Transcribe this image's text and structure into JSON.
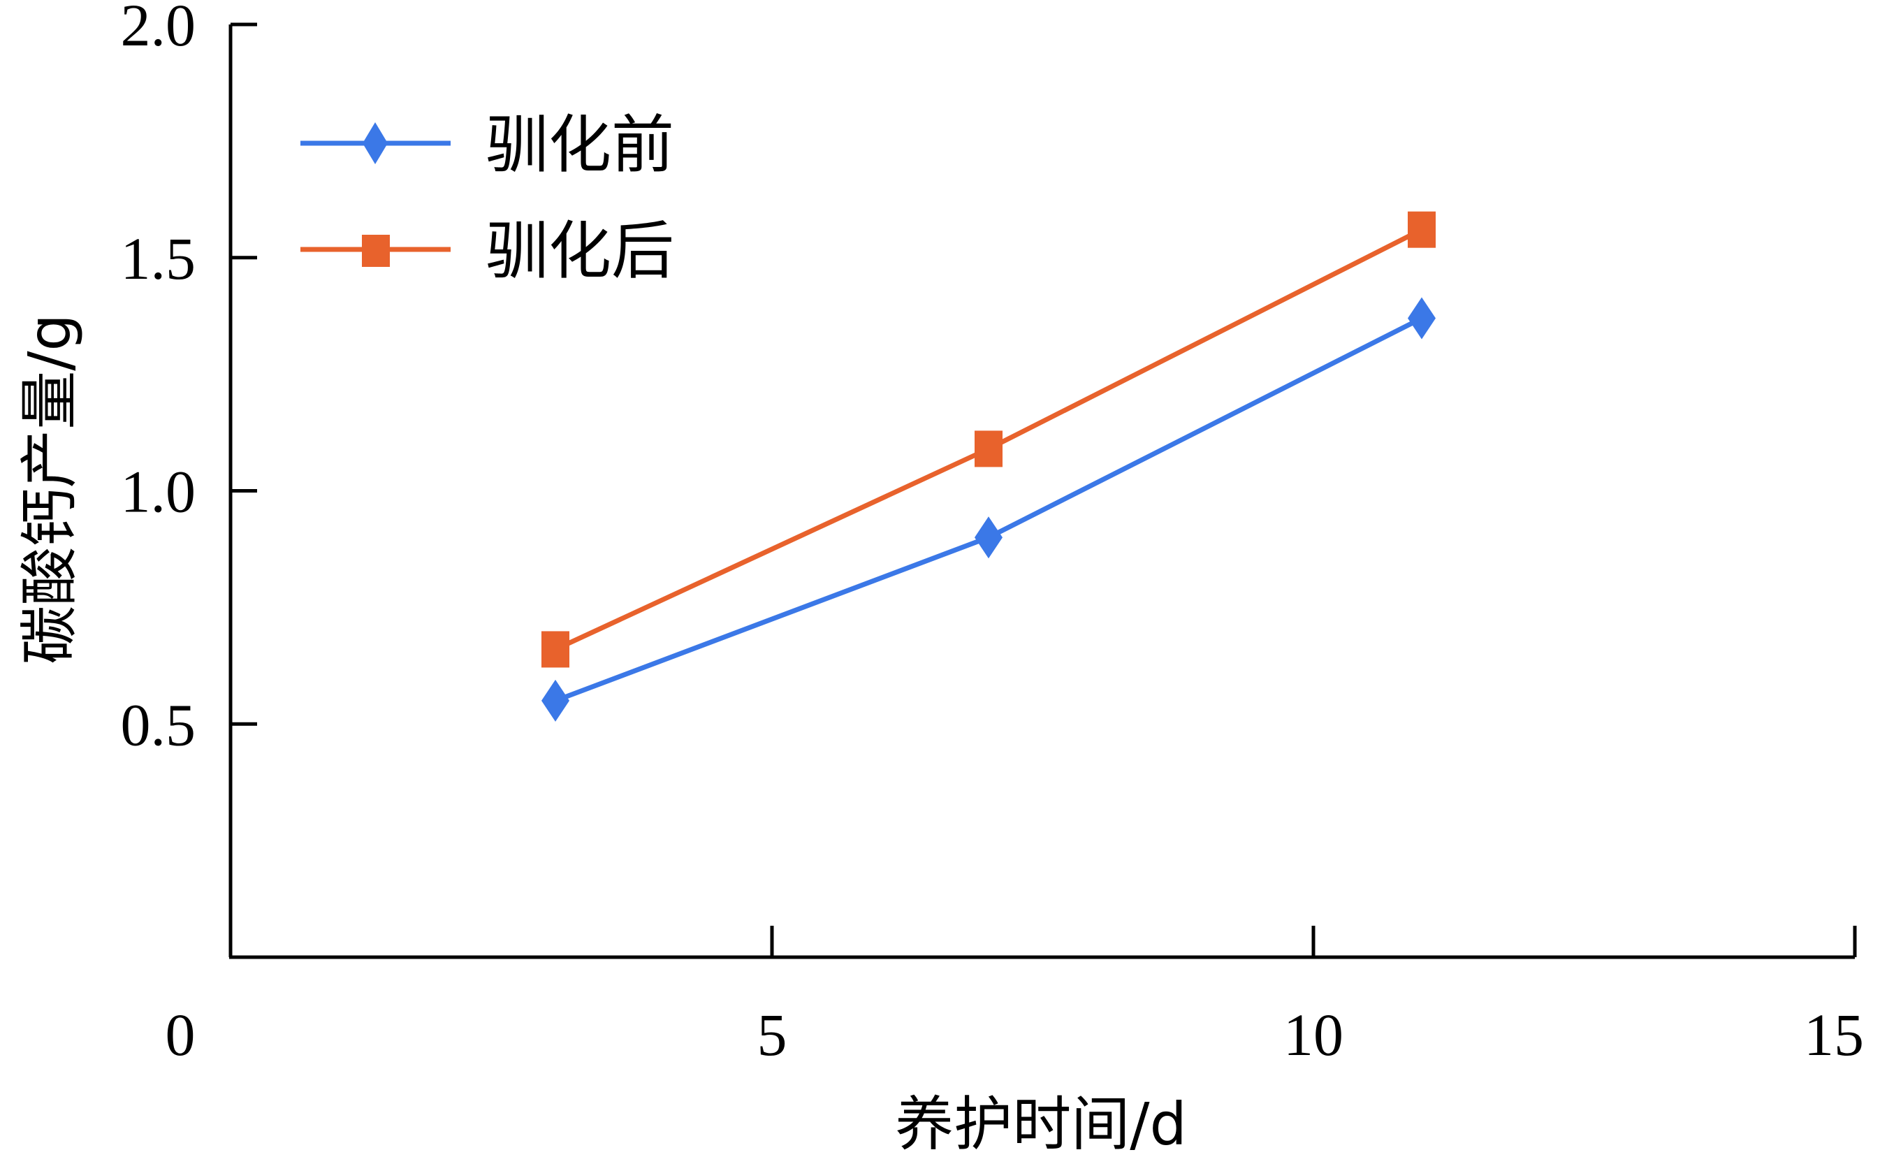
{
  "chart_data": {
    "type": "line",
    "title": "",
    "xlabel": "养护时间/d",
    "ylabel": "碳酸钙产量/g",
    "xlim": [
      0,
      15
    ],
    "ylim": [
      0,
      2.0
    ],
    "x_ticks": [
      "0",
      "5",
      "10",
      "15"
    ],
    "y_ticks": [
      "0.5",
      "1.0",
      "1.5",
      "2.0"
    ],
    "grid": false,
    "legend_position": "top-left",
    "x": [
      3,
      7,
      11
    ],
    "series": [
      {
        "name": "驯化前",
        "values": [
          0.55,
          0.9,
          1.37
        ],
        "color": "#3b78e7",
        "marker": "diamond"
      },
      {
        "name": "驯化后",
        "values": [
          0.66,
          1.09,
          1.56
        ],
        "color": "#e8622c",
        "marker": "square"
      }
    ]
  }
}
